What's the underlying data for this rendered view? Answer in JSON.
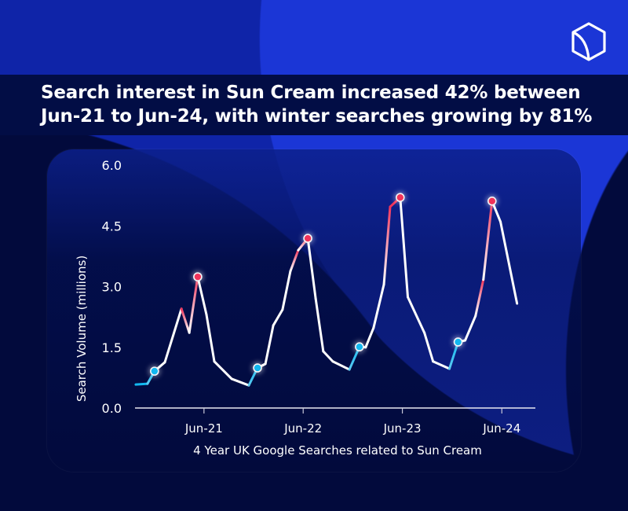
{
  "title": "Search interest in Sun Cream increased 42% between Jun-21 to Jun-24, with winter searches growing by 81%",
  "logo": {
    "icon": "hexagon-cube-logo"
  },
  "colors": {
    "line": "#ffffff",
    "low_marker": "#12b8f0",
    "high_marker": "#f0335a",
    "header_band": "#020d45",
    "accent_blue": "#1b36d6"
  },
  "chart_data": {
    "type": "line",
    "title": "",
    "xlabel": "4 Year UK Google Searches related to Sun Cream",
    "ylabel": "Search Volume (millions)",
    "ylim": [
      0,
      6.0
    ],
    "yticks": [
      {
        "value": 0,
        "label": "0.0"
      },
      {
        "value": 1.5,
        "label": "1.5"
      },
      {
        "value": 3.0,
        "label": "3.0"
      },
      {
        "value": 4.5,
        "label": "4.5"
      },
      {
        "value": 6.0,
        "label": "6.0"
      }
    ],
    "xticks": [
      {
        "date": "2021-06-15",
        "label": "Jun-21"
      },
      {
        "date": "2022-06-15",
        "label": "Jun-22"
      },
      {
        "date": "2023-06-15",
        "label": "Jun-23"
      },
      {
        "date": "2024-06-15",
        "label": "Jun-24"
      }
    ],
    "grid": false,
    "series": [
      {
        "points": [
          {
            "x": "2020-10-07",
            "y": 0.58
          },
          {
            "x": "2020-11-19",
            "y": 0.6
          },
          {
            "x": "2020-12-15",
            "y": 0.91,
            "marker": "low"
          },
          {
            "x": "2021-01-22",
            "y": 1.13
          },
          {
            "x": "2021-03-24",
            "y": 2.45
          },
          {
            "x": "2021-04-22",
            "y": 1.86
          },
          {
            "x": "2021-05-23",
            "y": 3.24,
            "marker": "high"
          },
          {
            "x": "2021-06-24",
            "y": 2.31
          },
          {
            "x": "2021-07-23",
            "y": 1.15
          },
          {
            "x": "2021-09-25",
            "y": 0.72
          },
          {
            "x": "2021-11-27",
            "y": 0.56
          },
          {
            "x": "2021-12-29",
            "y": 0.99,
            "marker": "low"
          },
          {
            "x": "2022-01-27",
            "y": 1.09
          },
          {
            "x": "2022-02-25",
            "y": 2.04
          },
          {
            "x": "2022-03-31",
            "y": 2.43
          },
          {
            "x": "2022-04-29",
            "y": 3.38
          },
          {
            "x": "2022-05-28",
            "y": 3.9
          },
          {
            "x": "2022-07-02",
            "y": 4.19,
            "marker": "high"
          },
          {
            "x": "2022-07-31",
            "y": 2.7
          },
          {
            "x": "2022-08-28",
            "y": 1.4
          },
          {
            "x": "2022-10-02",
            "y": 1.15
          },
          {
            "x": "2022-12-02",
            "y": 0.95
          },
          {
            "x": "2023-01-08",
            "y": 1.51,
            "marker": "low"
          },
          {
            "x": "2023-01-31",
            "y": 1.5
          },
          {
            "x": "2023-03-01",
            "y": 1.98
          },
          {
            "x": "2023-04-08",
            "y": 3.05
          },
          {
            "x": "2023-05-01",
            "y": 4.97
          },
          {
            "x": "2023-06-07",
            "y": 5.2,
            "marker": "high"
          },
          {
            "x": "2023-07-05",
            "y": 2.74
          },
          {
            "x": "2023-09-04",
            "y": 1.86
          },
          {
            "x": "2023-10-06",
            "y": 1.15
          },
          {
            "x": "2023-12-05",
            "y": 0.97
          },
          {
            "x": "2024-01-06",
            "y": 1.63,
            "marker": "low"
          },
          {
            "x": "2024-02-01",
            "y": 1.67
          },
          {
            "x": "2024-03-10",
            "y": 2.27
          },
          {
            "x": "2024-04-08",
            "y": 3.17
          },
          {
            "x": "2024-05-10",
            "y": 5.11,
            "marker": "high"
          },
          {
            "x": "2024-06-10",
            "y": 4.6
          },
          {
            "x": "2024-08-10",
            "y": 2.58
          }
        ]
      }
    ]
  }
}
